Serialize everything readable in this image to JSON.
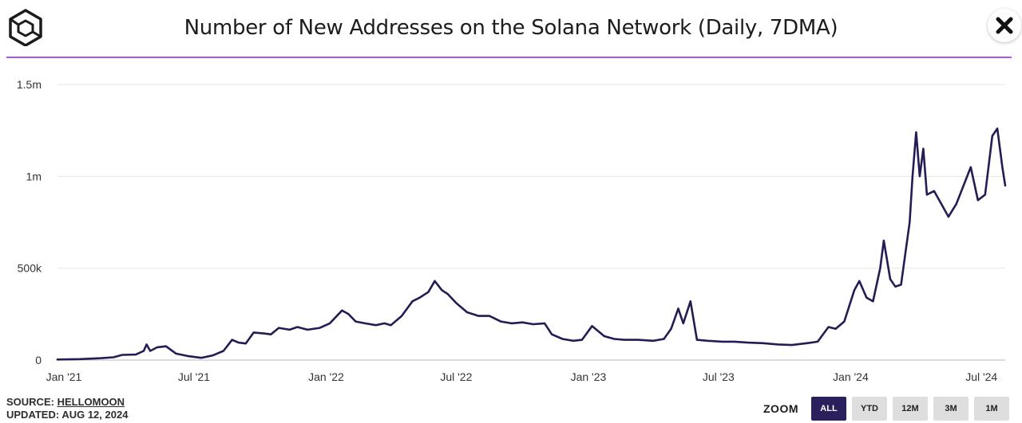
{
  "header": {
    "title": "Number of New Addresses on the Solana Network (Daily, 7DMA)"
  },
  "colors": {
    "accent_line": "#a855f7",
    "series": "#231d54",
    "zoom_active": "#2b1f5c",
    "zoom_inactive": "#dedede",
    "grid": "#e6e6e6"
  },
  "footer": {
    "source_label": "SOURCE: ",
    "source_name": "HELLOMOON",
    "updated": "UPDATED: AUG 12, 2024"
  },
  "zoom": {
    "label": "ZOOM",
    "options": [
      "ALL",
      "YTD",
      "12M",
      "3M",
      "1M"
    ],
    "active": "ALL"
  },
  "chart_data": {
    "type": "line",
    "title": "Number of New Addresses on the Solana Network (Daily, 7DMA)",
    "xlabel": "",
    "ylabel": "",
    "y_ticks": [
      {
        "value": 0,
        "label": "0"
      },
      {
        "value": 500000,
        "label": "500k"
      },
      {
        "value": 1000000,
        "label": "1m"
      },
      {
        "value": 1500000,
        "label": "1.5m"
      }
    ],
    "x_ticks": [
      {
        "date": "2021-01-01",
        "label": "Jan '21"
      },
      {
        "date": "2021-07-01",
        "label": "Jul '21"
      },
      {
        "date": "2022-01-01",
        "label": "Jan '22"
      },
      {
        "date": "2022-07-01",
        "label": "Jul '22"
      },
      {
        "date": "2023-01-01",
        "label": "Jan '23"
      },
      {
        "date": "2023-07-01",
        "label": "Jul '23"
      },
      {
        "date": "2024-01-01",
        "label": "Jan '24"
      },
      {
        "date": "2024-07-01",
        "label": "Jul '24"
      }
    ],
    "xlim": [
      "2021-01-01",
      "2024-08-12"
    ],
    "ylim": [
      0,
      1500000
    ],
    "grid": "horizontal",
    "legend": "none",
    "series": [
      {
        "points": [
          [
            "2021-01-01",
            3000
          ],
          [
            "2021-02-01",
            5000
          ],
          [
            "2021-03-01",
            10000
          ],
          [
            "2021-03-20",
            15000
          ],
          [
            "2021-04-01",
            28000
          ],
          [
            "2021-04-20",
            30000
          ],
          [
            "2021-05-01",
            50000
          ],
          [
            "2021-05-05",
            85000
          ],
          [
            "2021-05-10",
            50000
          ],
          [
            "2021-05-20",
            70000
          ],
          [
            "2021-06-01",
            75000
          ],
          [
            "2021-06-15",
            35000
          ],
          [
            "2021-07-01",
            22000
          ],
          [
            "2021-07-20",
            12000
          ],
          [
            "2021-08-05",
            25000
          ],
          [
            "2021-08-20",
            50000
          ],
          [
            "2021-09-01",
            110000
          ],
          [
            "2021-09-10",
            95000
          ],
          [
            "2021-09-20",
            90000
          ],
          [
            "2021-10-01",
            150000
          ],
          [
            "2021-10-15",
            145000
          ],
          [
            "2021-10-25",
            140000
          ],
          [
            "2021-11-05",
            175000
          ],
          [
            "2021-11-20",
            165000
          ],
          [
            "2021-12-01",
            180000
          ],
          [
            "2021-12-15",
            165000
          ],
          [
            "2022-01-01",
            175000
          ],
          [
            "2022-01-15",
            200000
          ],
          [
            "2022-02-01",
            270000
          ],
          [
            "2022-02-10",
            250000
          ],
          [
            "2022-02-20",
            210000
          ],
          [
            "2022-03-05",
            200000
          ],
          [
            "2022-03-20",
            190000
          ],
          [
            "2022-04-01",
            200000
          ],
          [
            "2022-04-10",
            190000
          ],
          [
            "2022-04-25",
            240000
          ],
          [
            "2022-05-10",
            320000
          ],
          [
            "2022-05-20",
            340000
          ],
          [
            "2022-06-01",
            370000
          ],
          [
            "2022-06-10",
            430000
          ],
          [
            "2022-06-20",
            380000
          ],
          [
            "2022-06-28",
            360000
          ],
          [
            "2022-07-10",
            310000
          ],
          [
            "2022-07-25",
            260000
          ],
          [
            "2022-08-10",
            240000
          ],
          [
            "2022-08-25",
            240000
          ],
          [
            "2022-09-10",
            210000
          ],
          [
            "2022-09-25",
            200000
          ],
          [
            "2022-10-10",
            205000
          ],
          [
            "2022-10-25",
            195000
          ],
          [
            "2022-11-10",
            200000
          ],
          [
            "2022-11-20",
            140000
          ],
          [
            "2022-12-05",
            115000
          ],
          [
            "2022-12-20",
            105000
          ],
          [
            "2023-01-01",
            110000
          ],
          [
            "2023-01-15",
            185000
          ],
          [
            "2023-02-01",
            130000
          ],
          [
            "2023-02-15",
            115000
          ],
          [
            "2023-03-01",
            110000
          ],
          [
            "2023-03-20",
            110000
          ],
          [
            "2023-04-10",
            105000
          ],
          [
            "2023-04-25",
            115000
          ],
          [
            "2023-05-05",
            170000
          ],
          [
            "2023-05-15",
            280000
          ],
          [
            "2023-05-22",
            200000
          ],
          [
            "2023-06-01",
            320000
          ],
          [
            "2023-06-10",
            110000
          ],
          [
            "2023-06-25",
            105000
          ],
          [
            "2023-07-15",
            100000
          ],
          [
            "2023-08-01",
            100000
          ],
          [
            "2023-08-20",
            95000
          ],
          [
            "2023-09-10",
            92000
          ],
          [
            "2023-10-01",
            85000
          ],
          [
            "2023-10-20",
            82000
          ],
          [
            "2023-11-10",
            92000
          ],
          [
            "2023-11-25",
            100000
          ],
          [
            "2023-12-10",
            180000
          ],
          [
            "2023-12-20",
            170000
          ],
          [
            "2024-01-01",
            210000
          ],
          [
            "2024-01-15",
            380000
          ],
          [
            "2024-01-22",
            430000
          ],
          [
            "2024-02-01",
            340000
          ],
          [
            "2024-02-10",
            320000
          ],
          [
            "2024-02-20",
            500000
          ],
          [
            "2024-02-25",
            650000
          ],
          [
            "2024-03-05",
            440000
          ],
          [
            "2024-03-12",
            400000
          ],
          [
            "2024-03-20",
            410000
          ],
          [
            "2024-04-01",
            750000
          ],
          [
            "2024-04-05",
            1000000
          ],
          [
            "2024-04-10",
            1240000
          ],
          [
            "2024-04-15",
            1000000
          ],
          [
            "2024-04-20",
            1150000
          ],
          [
            "2024-04-25",
            900000
          ],
          [
            "2024-05-05",
            920000
          ],
          [
            "2024-05-15",
            850000
          ],
          [
            "2024-05-25",
            780000
          ],
          [
            "2024-06-05",
            850000
          ],
          [
            "2024-06-15",
            950000
          ],
          [
            "2024-06-25",
            1050000
          ],
          [
            "2024-07-05",
            870000
          ],
          [
            "2024-07-15",
            900000
          ],
          [
            "2024-07-25",
            1220000
          ],
          [
            "2024-08-01",
            1260000
          ],
          [
            "2024-08-08",
            1050000
          ],
          [
            "2024-08-12",
            950000
          ]
        ]
      }
    ]
  }
}
